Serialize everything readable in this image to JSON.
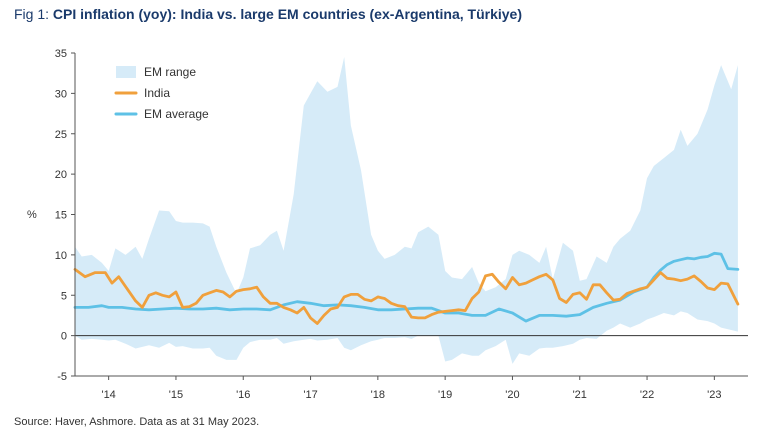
{
  "header": {
    "fig_label": "Fig 1: ",
    "title": "CPI inflation (yoy): India vs. large EM countries (ex-Argentina, Türkiye)"
  },
  "footer": {
    "source": "Source: Haver, Ashmore. Data as at 31 May 2023."
  },
  "colors": {
    "range_fill": "#d6ebf8",
    "india": "#f0a03c",
    "em_average": "#5ec1e6",
    "zero_line": "#333333"
  },
  "chart_data": {
    "type": "area",
    "ylabel": "%",
    "ylim": [
      -5,
      35
    ],
    "yticks": [
      -5,
      0,
      5,
      10,
      15,
      20,
      25,
      30,
      35
    ],
    "xlim": [
      2013.5,
      2023.5
    ],
    "xticks": [
      {
        "label": "'14",
        "value": 2014
      },
      {
        "label": "'15",
        "value": 2015
      },
      {
        "label": "'16",
        "value": 2016
      },
      {
        "label": "'17",
        "value": 2017
      },
      {
        "label": "'18",
        "value": 2018
      },
      {
        "label": "'19",
        "value": 2019
      },
      {
        "label": "'20",
        "value": 2020
      },
      {
        "label": "'21",
        "value": 2021
      },
      {
        "label": "'22",
        "value": 2022
      },
      {
        "label": "'23",
        "value": 2023
      }
    ],
    "legend": {
      "position": "top-left",
      "entries": [
        "EM range",
        "India",
        "EM average"
      ]
    },
    "series": [
      {
        "name": "EM range",
        "x": [
          2013.5,
          2013.6,
          2013.75,
          2013.9,
          2014.0,
          2014.1,
          2014.25,
          2014.4,
          2014.5,
          2014.6,
          2014.75,
          2014.9,
          2015.0,
          2015.1,
          2015.25,
          2015.4,
          2015.5,
          2015.6,
          2015.75,
          2015.9,
          2016.0,
          2016.1,
          2016.25,
          2016.4,
          2016.5,
          2016.6,
          2016.75,
          2016.9,
          2017.0,
          2017.1,
          2017.25,
          2017.4,
          2017.5,
          2017.6,
          2017.75,
          2017.9,
          2018.0,
          2018.1,
          2018.25,
          2018.4,
          2018.5,
          2018.6,
          2018.75,
          2018.9,
          2019.0,
          2019.1,
          2019.25,
          2019.4,
          2019.5,
          2019.6,
          2019.75,
          2019.9,
          2020.0,
          2020.1,
          2020.25,
          2020.4,
          2020.5,
          2020.6,
          2020.75,
          2020.9,
          2021.0,
          2021.1,
          2021.25,
          2021.4,
          2021.5,
          2021.6,
          2021.75,
          2021.9,
          2022.0,
          2022.1,
          2022.25,
          2022.4,
          2022.5,
          2022.6,
          2022.75,
          2022.9,
          2023.0,
          2023.1,
          2023.25,
          2023.35
        ],
        "upper": [
          11,
          9.8,
          10,
          9,
          8,
          10.8,
          10,
          11,
          9.5,
          12,
          15.5,
          15.4,
          14.2,
          14,
          14,
          13.9,
          13.5,
          11,
          7.8,
          5.2,
          7.2,
          10.8,
          11.2,
          12.5,
          13,
          10.5,
          17.5,
          28.5,
          30,
          31.5,
          30.2,
          30.8,
          34.5,
          26,
          20.5,
          12.5,
          10.5,
          9.5,
          10,
          11,
          10.8,
          12.8,
          13.5,
          12.5,
          8,
          7.2,
          7,
          8.5,
          6.5,
          5.5,
          6,
          7,
          10,
          10.5,
          10,
          9,
          11,
          7,
          11.5,
          10.5,
          6.8,
          7,
          9.8,
          9,
          11,
          12,
          13,
          15.5,
          19.5,
          21,
          22,
          23,
          25.5,
          23.5,
          25,
          28,
          31,
          33.5,
          30.5,
          33.5
        ],
        "lower": [
          0,
          -0.5,
          -0.4,
          -0.5,
          -0.6,
          -0.5,
          -1,
          -1.6,
          -1.4,
          -1.2,
          -1.5,
          -0.9,
          -1.4,
          -1.3,
          -1.6,
          -1.6,
          -1.5,
          -2.5,
          -3,
          -3,
          -1.5,
          -0.8,
          -0.5,
          -0.5,
          -0.3,
          -1,
          -0.7,
          -0.5,
          -0.4,
          -0.6,
          -0.5,
          -0.3,
          -1.5,
          -1.8,
          -1.2,
          -0.7,
          -0.5,
          -0.3,
          -0.3,
          -0.2,
          -0.4,
          0,
          0,
          0,
          -3.2,
          -3,
          -2.2,
          -2.5,
          -2.5,
          -1.8,
          -1.3,
          -0.5,
          -3.5,
          -2.2,
          -2.5,
          -1.6,
          -1.5,
          -1.5,
          -1.3,
          -1,
          -0.5,
          -0.3,
          -0.4,
          0.6,
          1,
          1.5,
          1,
          1.5,
          2,
          2.3,
          2.8,
          2.5,
          3,
          2.8,
          2,
          1.8,
          1.5,
          1,
          0.7,
          0.5
        ]
      },
      {
        "name": "India",
        "x": [
          2013.5,
          2013.65,
          2013.8,
          2013.95,
          2014.05,
          2014.15,
          2014.3,
          2014.4,
          2014.5,
          2014.6,
          2014.7,
          2014.8,
          2014.9,
          2015.0,
          2015.1,
          2015.2,
          2015.3,
          2015.4,
          2015.5,
          2015.6,
          2015.7,
          2015.8,
          2015.9,
          2016.0,
          2016.1,
          2016.2,
          2016.3,
          2016.4,
          2016.5,
          2016.6,
          2016.7,
          2016.8,
          2016.9,
          2017.0,
          2017.1,
          2017.2,
          2017.3,
          2017.4,
          2017.5,
          2017.6,
          2017.7,
          2017.8,
          2017.9,
          2018.0,
          2018.1,
          2018.2,
          2018.3,
          2018.4,
          2018.5,
          2018.6,
          2018.7,
          2018.8,
          2018.9,
          2019.0,
          2019.1,
          2019.2,
          2019.3,
          2019.4,
          2019.5,
          2019.6,
          2019.7,
          2019.8,
          2019.9,
          2020.0,
          2020.1,
          2020.2,
          2020.3,
          2020.4,
          2020.5,
          2020.6,
          2020.7,
          2020.8,
          2020.9,
          2021.0,
          2021.1,
          2021.2,
          2021.3,
          2021.4,
          2021.5,
          2021.6,
          2021.7,
          2021.8,
          2021.9,
          2022.0,
          2022.1,
          2022.2,
          2022.3,
          2022.4,
          2022.5,
          2022.6,
          2022.7,
          2022.8,
          2022.9,
          2023.0,
          2023.1,
          2023.2,
          2023.35
        ],
        "values": [
          8.2,
          7.3,
          7.8,
          7.8,
          6.5,
          7.3,
          5.5,
          4.3,
          3.5,
          5,
          5.3,
          5,
          4.8,
          5.4,
          3.5,
          3.6,
          4,
          5,
          5.3,
          5.6,
          5.4,
          4.8,
          5.5,
          5.7,
          5.8,
          6,
          4.8,
          4,
          4,
          3.5,
          3.2,
          2.8,
          3.5,
          2.2,
          1.5,
          2.5,
          3.3,
          3.5,
          4.8,
          5.1,
          5.1,
          4.5,
          4.3,
          4.8,
          4.6,
          4.0,
          3.7,
          3.6,
          2.3,
          2.2,
          2.2,
          2.6,
          2.9,
          3,
          3.1,
          3.2,
          3.1,
          4.6,
          5.4,
          7.4,
          7.6,
          6.6,
          5.8,
          7.2,
          6.3,
          6.5,
          6.9,
          7.3,
          7.6,
          6.9,
          4.6,
          4.1,
          5.1,
          5.3,
          4.5,
          6.3,
          6.3,
          5.3,
          4.4,
          4.5,
          5.2,
          5.5,
          5.8,
          6.0,
          6.9,
          7.8,
          7.1,
          7.0,
          6.8,
          7.0,
          7.4,
          6.7,
          5.9,
          5.7,
          6.5,
          6.4,
          3.9
        ]
      },
      {
        "name": "EM average",
        "x": [
          2013.5,
          2013.7,
          2013.9,
          2014.0,
          2014.2,
          2014.4,
          2014.6,
          2014.8,
          2015.0,
          2015.2,
          2015.4,
          2015.6,
          2015.8,
          2016.0,
          2016.2,
          2016.4,
          2016.6,
          2016.8,
          2017.0,
          2017.2,
          2017.4,
          2017.6,
          2017.8,
          2018.0,
          2018.2,
          2018.4,
          2018.6,
          2018.8,
          2019.0,
          2019.2,
          2019.4,
          2019.6,
          2019.8,
          2020.0,
          2020.2,
          2020.4,
          2020.6,
          2020.8,
          2021.0,
          2021.2,
          2021.4,
          2021.6,
          2021.8,
          2022.0,
          2022.1,
          2022.2,
          2022.3,
          2022.4,
          2022.5,
          2022.6,
          2022.7,
          2022.8,
          2022.9,
          2023.0,
          2023.1,
          2023.2,
          2023.35
        ],
        "values": [
          3.5,
          3.5,
          3.7,
          3.5,
          3.5,
          3.3,
          3.2,
          3.3,
          3.4,
          3.3,
          3.3,
          3.4,
          3.2,
          3.3,
          3.3,
          3.2,
          3.8,
          4.2,
          4.0,
          3.7,
          3.8,
          3.7,
          3.5,
          3.2,
          3.2,
          3.3,
          3.4,
          3.4,
          2.8,
          2.8,
          2.5,
          2.5,
          3.3,
          2.8,
          1.8,
          2.5,
          2.5,
          2.4,
          2.6,
          3.5,
          4.0,
          4.4,
          5.4,
          6.0,
          7.2,
          8.1,
          8.8,
          9.2,
          9.4,
          9.6,
          9.5,
          9.7,
          9.8,
          10.2,
          10.1,
          8.3,
          8.2
        ]
      }
    ]
  }
}
